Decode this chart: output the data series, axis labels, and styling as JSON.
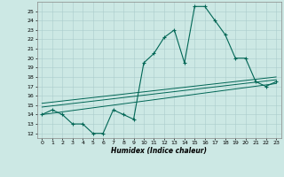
{
  "xlabel": "Humidex (Indice chaleur)",
  "xlim": [
    -0.5,
    23.5
  ],
  "ylim": [
    11.5,
    26.0
  ],
  "xticks": [
    0,
    1,
    2,
    3,
    4,
    5,
    6,
    7,
    8,
    9,
    10,
    11,
    12,
    13,
    14,
    15,
    16,
    17,
    18,
    19,
    20,
    21,
    22,
    23
  ],
  "yticks": [
    12,
    13,
    14,
    15,
    16,
    17,
    18,
    19,
    20,
    21,
    22,
    23,
    24,
    25
  ],
  "bg_color": "#cce8e4",
  "line_color": "#006655",
  "grid_color": "#aacccc",
  "line1_x": [
    0,
    1,
    2,
    3,
    4,
    5,
    6,
    7,
    8,
    9,
    10,
    11,
    12,
    13,
    14,
    15,
    16,
    17,
    18,
    19,
    20,
    21,
    22,
    23
  ],
  "line1_y": [
    14.0,
    14.5,
    14.0,
    13.0,
    13.0,
    12.0,
    12.0,
    14.5,
    14.0,
    13.5,
    19.5,
    20.5,
    22.2,
    23.0,
    19.5,
    25.5,
    25.5,
    24.0,
    22.5,
    20.0,
    20.0,
    17.5,
    17.0,
    17.5
  ],
  "line2_x": [
    0,
    23
  ],
  "line2_y": [
    14.0,
    17.3
  ],
  "line3_x": [
    0,
    23
  ],
  "line3_y": [
    14.8,
    17.7
  ],
  "line4_x": [
    0,
    23
  ],
  "line4_y": [
    15.2,
    18.0
  ]
}
